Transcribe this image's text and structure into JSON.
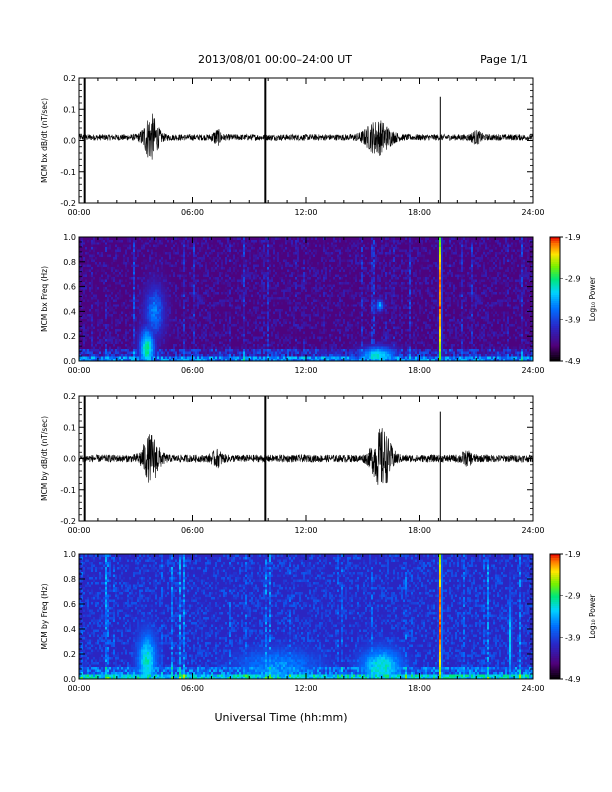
{
  "header": {
    "date_range": "2013/08/01   00:00–24:00 UT",
    "page": "Page 1/1"
  },
  "footer": {
    "xlabel": "Universal Time (hh:mm)"
  },
  "colorbar": {
    "label": "Log₁₀ Power",
    "ticks": [
      "-1.9",
      "-2.9",
      "-3.9",
      "-4.9"
    ]
  },
  "chart_data": [
    {
      "type": "line",
      "ylabel": "MCM bx dB/dt (nT/sec)",
      "xlim": [
        0,
        24
      ],
      "ylim": [
        -0.2,
        0.2
      ],
      "x_ticks": [
        "00:00",
        "06:00",
        "12:00",
        "18:00",
        "24:00"
      ],
      "y_ticks": [
        "0.2",
        "0.1",
        "0.0",
        "-0.1",
        "-0.2"
      ],
      "baseline": 0.01,
      "noise_amplitude": 0.01,
      "bursts": [
        {
          "t_hours": 3.8,
          "width_hours": 0.7,
          "amplitude": 0.07
        },
        {
          "t_hours": 7.3,
          "width_hours": 0.4,
          "amplitude": 0.02
        },
        {
          "t_hours": 15.8,
          "width_hours": 1.2,
          "amplitude": 0.05
        },
        {
          "t_hours": 21.0,
          "width_hours": 0.5,
          "amplitude": 0.015
        }
      ],
      "spikes": [
        {
          "t_hours": 0.3,
          "y_min": -0.2,
          "y_max": 0.2
        },
        {
          "t_hours": 9.85,
          "y_min": -0.2,
          "y_max": 0.2
        },
        {
          "t_hours": 19.1,
          "y_min": -0.2,
          "y_max": 0.14
        }
      ]
    },
    {
      "type": "heatmap",
      "ylabel": "MCM bx Freq (Hz)",
      "xlim": [
        0,
        24
      ],
      "ylim": [
        0,
        1.0
      ],
      "x_ticks": [
        "00:00",
        "06:00",
        "12:00",
        "18:00",
        "24:00"
      ],
      "y_ticks": [
        "1.0",
        "0.8",
        "0.6",
        "0.4",
        "0.2",
        "0.0"
      ],
      "color_range": [
        -4.9,
        -1.9
      ],
      "background_log_power": -4.5,
      "features": [
        {
          "t_hours": 3.6,
          "f_hz": 0.1,
          "log_power": -3.0,
          "t_width": 0.6,
          "f_width": 0.25
        },
        {
          "t_hours": 4.0,
          "f_hz": 0.4,
          "log_power": -3.6,
          "t_width": 0.8,
          "f_width": 0.3
        },
        {
          "t_hours": 15.8,
          "f_hz": 0.05,
          "log_power": -3.1,
          "t_width": 1.4,
          "f_width": 0.1
        },
        {
          "t_hours": 15.9,
          "f_hz": 0.45,
          "log_power": -3.4,
          "t_width": 0.3,
          "f_width": 0.07
        },
        {
          "t_hours": 19.1,
          "f_hz": 0.5,
          "log_power": -1.9,
          "t_width": 0.1,
          "f_width": 1.2
        }
      ]
    },
    {
      "type": "line",
      "ylabel": "MCM by dB/dt (nT/sec)",
      "xlim": [
        0,
        24
      ],
      "ylim": [
        -0.2,
        0.2
      ],
      "x_ticks": [
        "00:00",
        "06:00",
        "12:00",
        "18:00",
        "24:00"
      ],
      "y_ticks": [
        "0.2",
        "0.1",
        "0.0",
        "-0.1",
        "-0.2"
      ],
      "baseline": 0.0,
      "noise_amplitude": 0.012,
      "bursts": [
        {
          "t_hours": 3.8,
          "width_hours": 0.8,
          "amplitude": 0.07
        },
        {
          "t_hours": 7.3,
          "width_hours": 0.5,
          "amplitude": 0.02
        },
        {
          "t_hours": 16.0,
          "width_hours": 0.9,
          "amplitude": 0.09
        },
        {
          "t_hours": 20.5,
          "width_hours": 0.6,
          "amplitude": 0.015
        }
      ],
      "spikes": [
        {
          "t_hours": 0.3,
          "y_min": -0.2,
          "y_max": 0.2
        },
        {
          "t_hours": 9.85,
          "y_min": -0.2,
          "y_max": 0.2
        },
        {
          "t_hours": 19.1,
          "y_min": -0.2,
          "y_max": 0.15
        }
      ]
    },
    {
      "type": "heatmap",
      "ylabel": "MCM by Freq (Hz)",
      "xlim": [
        0,
        24
      ],
      "ylim": [
        0,
        1.0
      ],
      "x_ticks": [
        "00:00",
        "06:00",
        "12:00",
        "18:00",
        "24:00"
      ],
      "y_ticks": [
        "1.0",
        "0.8",
        "0.6",
        "0.4",
        "0.2",
        "0.0"
      ],
      "color_range": [
        -4.9,
        -1.9
      ],
      "background_log_power": -4.1,
      "features": [
        {
          "t_hours": 3.6,
          "f_hz": 0.15,
          "log_power": -3.1,
          "t_width": 0.7,
          "f_width": 0.3
        },
        {
          "t_hours": 10.5,
          "f_hz": 0.1,
          "log_power": -3.5,
          "t_width": 3.0,
          "f_width": 0.2
        },
        {
          "t_hours": 16.0,
          "f_hz": 0.1,
          "log_power": -3.1,
          "t_width": 1.5,
          "f_width": 0.2
        },
        {
          "t_hours": 19.1,
          "f_hz": 0.5,
          "log_power": -1.9,
          "t_width": 0.1,
          "f_width": 1.2
        },
        {
          "t_hours": 22.8,
          "f_hz": 0.3,
          "log_power": -3.2,
          "t_width": 0.1,
          "f_width": 0.5
        }
      ]
    }
  ]
}
